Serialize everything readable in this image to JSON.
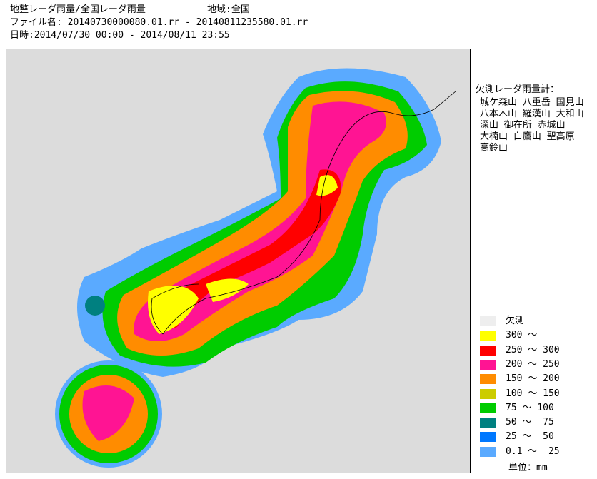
{
  "header": {
    "product": "地整レーダ雨量/全国レーダ雨量",
    "region": "地域:全国",
    "file": "ファイル名: 20140730000080.01.rr - 20140811235580.01.rr",
    "datetime": "日時:2014/07/30 00:00 - 2014/08/11 23:55"
  },
  "missing_radars": {
    "title": "欠測レーダ雨量計：",
    "lines": [
      "城ケ森山 八重岳 国見山",
      "八本木山 羅漢山 大和山",
      "深山 御在所 赤城山",
      "大楠山 白鷹山 聖高原",
      "高鈴山"
    ]
  },
  "legend": {
    "items": [
      {
        "label": "欠測",
        "color": "#eeeeee"
      },
      {
        "label": "300 ～",
        "color": "#ffff00"
      },
      {
        "label": "250 ～ 300",
        "color": "#ff0000"
      },
      {
        "label": "200 ～ 250",
        "color": "#ff1493"
      },
      {
        "label": "150 ～ 200",
        "color": "#ff8c00"
      },
      {
        "label": "100 ～ 150",
        "color": "#cccc00"
      },
      {
        "label": "75 ～ 100",
        "color": "#00cc00"
      },
      {
        "label": "50 ～  75",
        "color": "#008080"
      },
      {
        "label": "25 ～  50",
        "color": "#0078ff"
      },
      {
        "label": "0.1 ～  25",
        "color": "#5aaaff"
      }
    ],
    "unit": "単位：mm"
  }
}
